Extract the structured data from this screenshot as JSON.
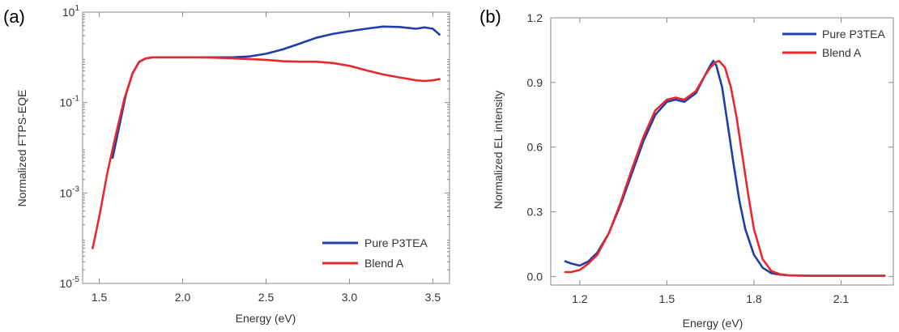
{
  "chart_data": [
    {
      "panel": "(a)",
      "type": "line",
      "xlabel": "Energy (eV)",
      "ylabel": "Normalized FTPS-EQE",
      "xlim": [
        1.4,
        3.6
      ],
      "ylim": [
        1e-05,
        10
      ],
      "yscale": "log",
      "xticks": [
        1.5,
        2.0,
        2.5,
        3.0,
        3.5
      ],
      "xtick_labels": [
        "1.5",
        "2.0",
        "2.5",
        "3.0",
        "3.5"
      ],
      "yticks": [
        1e-05,
        0.001,
        0.1,
        10
      ],
      "ytick_bases": [
        "10",
        "10",
        "10",
        "10"
      ],
      "ytick_exps": [
        "-5",
        "-3",
        "-1",
        "1"
      ],
      "legend_position": "bottom-right",
      "series": [
        {
          "name": "Pure P3TEA",
          "color": "#1f3fa8",
          "x": [
            1.58,
            1.62,
            1.66,
            1.7,
            1.74,
            1.78,
            1.82,
            1.9,
            2.0,
            2.1,
            2.2,
            2.3,
            2.4,
            2.5,
            2.6,
            2.7,
            2.8,
            2.9,
            3.0,
            3.1,
            3.2,
            3.3,
            3.35,
            3.4,
            3.45,
            3.5,
            3.54
          ],
          "y": [
            0.006,
            0.03,
            0.15,
            0.45,
            0.8,
            0.95,
            1.0,
            1.0,
            1.0,
            1.0,
            1.0,
            1.0,
            1.05,
            1.2,
            1.5,
            2.0,
            2.7,
            3.3,
            3.8,
            4.3,
            4.8,
            4.7,
            4.5,
            4.3,
            4.6,
            4.3,
            3.2
          ]
        },
        {
          "name": "Blend A",
          "color": "#e8282e",
          "x": [
            1.46,
            1.5,
            1.55,
            1.6,
            1.65,
            1.7,
            1.74,
            1.78,
            1.82,
            1.9,
            2.0,
            2.1,
            2.2,
            2.3,
            2.4,
            2.5,
            2.6,
            2.7,
            2.8,
            2.9,
            3.0,
            3.1,
            3.2,
            3.3,
            3.4,
            3.45,
            3.5,
            3.54
          ],
          "y": [
            6e-05,
            0.0003,
            0.003,
            0.02,
            0.12,
            0.45,
            0.8,
            0.95,
            1.0,
            1.0,
            1.0,
            1.0,
            0.98,
            0.95,
            0.92,
            0.88,
            0.82,
            0.8,
            0.8,
            0.75,
            0.65,
            0.52,
            0.42,
            0.36,
            0.31,
            0.3,
            0.31,
            0.33
          ]
        }
      ]
    },
    {
      "panel": "(b)",
      "type": "line",
      "xlabel": "Energy (eV)",
      "ylabel": "Normalized EL intensity",
      "xlim": [
        1.1,
        2.28
      ],
      "ylim": [
        -0.04,
        1.2
      ],
      "xticks": [
        1.2,
        1.5,
        1.8,
        2.1
      ],
      "xtick_labels": [
        "1.2",
        "1.5",
        "1.8",
        "2.1"
      ],
      "yticks": [
        0.0,
        0.3,
        0.6,
        0.9,
        1.2
      ],
      "ytick_labels": [
        "0.0",
        "0.3",
        "0.6",
        "0.9",
        "1.2"
      ],
      "legend_position": "top-right",
      "series": [
        {
          "name": "Pure P3TEA",
          "color": "#1f3fa8",
          "x": [
            1.15,
            1.17,
            1.2,
            1.23,
            1.26,
            1.3,
            1.34,
            1.38,
            1.42,
            1.46,
            1.5,
            1.53,
            1.56,
            1.6,
            1.63,
            1.65,
            1.66,
            1.67,
            1.69,
            1.71,
            1.73,
            1.75,
            1.77,
            1.8,
            1.83,
            1.86,
            1.89,
            1.92,
            1.95,
            2.0,
            2.1,
            2.2,
            2.25
          ],
          "y": [
            0.07,
            0.06,
            0.05,
            0.07,
            0.11,
            0.2,
            0.33,
            0.48,
            0.63,
            0.75,
            0.81,
            0.82,
            0.81,
            0.85,
            0.93,
            0.98,
            1.0,
            0.98,
            0.88,
            0.7,
            0.52,
            0.35,
            0.22,
            0.1,
            0.04,
            0.015,
            0.008,
            0.005,
            0.004,
            0.003,
            0.003,
            0.003,
            0.003
          ]
        },
        {
          "name": "Blend A",
          "color": "#e8282e",
          "x": [
            1.15,
            1.17,
            1.2,
            1.23,
            1.26,
            1.3,
            1.34,
            1.38,
            1.42,
            1.46,
            1.5,
            1.53,
            1.56,
            1.6,
            1.63,
            1.65,
            1.67,
            1.68,
            1.7,
            1.72,
            1.74,
            1.76,
            1.78,
            1.8,
            1.83,
            1.86,
            1.89,
            1.92,
            1.95,
            2.0,
            2.1,
            2.2,
            2.25
          ],
          "y": [
            0.02,
            0.02,
            0.03,
            0.06,
            0.1,
            0.2,
            0.34,
            0.5,
            0.65,
            0.77,
            0.82,
            0.83,
            0.82,
            0.86,
            0.93,
            0.97,
            0.995,
            1.0,
            0.97,
            0.88,
            0.74,
            0.56,
            0.38,
            0.22,
            0.08,
            0.025,
            0.01,
            0.005,
            0.004,
            0.003,
            0.003,
            0.003,
            0.003
          ]
        }
      ]
    }
  ]
}
